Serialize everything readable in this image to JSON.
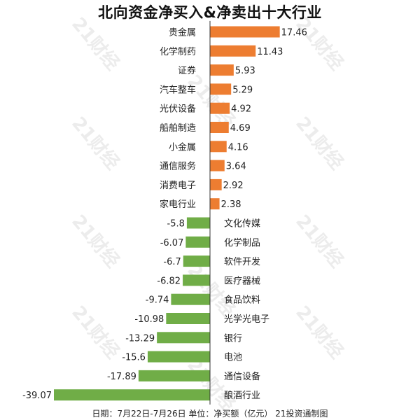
{
  "title": "北向资金净买入&净卖出十大行业",
  "footer": "日期：7月22日-7月26日 单位：净买额（亿元） 21投资通制图",
  "watermark": "21财经",
  "colors": {
    "positive": "#ED7D31",
    "negative": "#70AD47",
    "axis": "#333333",
    "text": "#222222",
    "watermark": "#dddddd"
  },
  "chart_data": {
    "type": "bar",
    "orientation": "horizontal",
    "title": "北向资金净买入&净卖出十大行业",
    "unit": "净买额（亿元）",
    "categories": [
      "贵金属",
      "化学制药",
      "证券",
      "汽车整车",
      "光伏设备",
      "船舶制造",
      "小金属",
      "通信服务",
      "消费电子",
      "家电行业",
      "文化传媒",
      "化学制品",
      "软件开发",
      "医疗器械",
      "食品饮料",
      "光学光电子",
      "银行",
      "电池",
      "通信设备",
      "酿酒行业"
    ],
    "values": [
      17.46,
      11.43,
      5.93,
      5.29,
      4.92,
      4.69,
      4.16,
      3.64,
      2.92,
      2.38,
      -5.8,
      -6.07,
      -6.7,
      -6.82,
      -9.74,
      -10.98,
      -13.29,
      -15.6,
      -17.89,
      -39.07
    ],
    "value_labels": [
      "17.46",
      "11.43",
      "5.93",
      "5.29",
      "4.92",
      "4.69",
      "4.16",
      "3.64",
      "2.92",
      "2.38",
      "-5.8",
      "-6.07",
      "-6.7",
      "-6.82",
      "-9.74",
      "-10.98",
      "-13.29",
      "-15.6",
      "-17.89",
      "-39.07"
    ],
    "xlim": [
      -39.07,
      17.46
    ],
    "grid": false,
    "legend": "none"
  }
}
